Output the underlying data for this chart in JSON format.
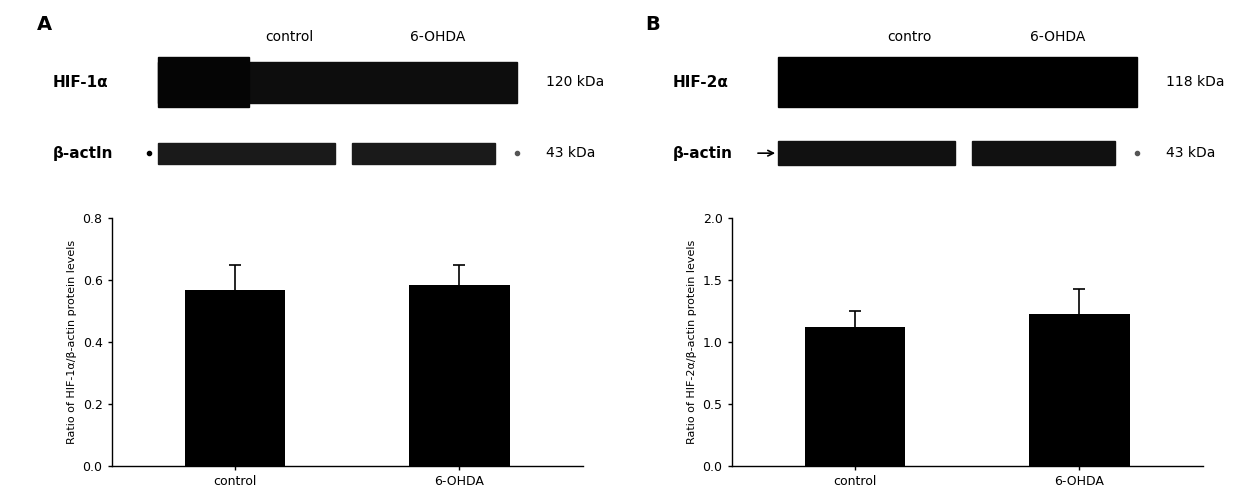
{
  "panel_A": {
    "label": "A",
    "wb_label1": "HIF-1α",
    "wb_label2": "β-actIn",
    "kda1": "120 kDa",
    "kda2": "43 kDa",
    "wb_col_labels": [
      "control",
      "6-OHDA"
    ],
    "categories": [
      "control",
      "6-OHDA"
    ],
    "values": [
      0.57,
      0.585
    ],
    "errors": [
      0.08,
      0.065
    ],
    "ylabel": "Ratio of HIF-1α/β-actin protein levels",
    "ylim": [
      0.0,
      0.8
    ],
    "yticks": [
      0.0,
      0.2,
      0.4,
      0.6,
      0.8
    ]
  },
  "panel_B": {
    "label": "B",
    "wb_label1": "HIF-2α",
    "wb_label2": "β-actin",
    "kda1": "118 kDa",
    "kda2": "43 kDa",
    "wb_col_labels": [
      "contro",
      "6-OHDA"
    ],
    "categories": [
      "control",
      "6-OHDA"
    ],
    "values": [
      1.12,
      1.23
    ],
    "errors": [
      0.13,
      0.2
    ],
    "ylabel": "Ratio of HIF-2α/β-actin protein levels",
    "ylim": [
      0.0,
      2.0
    ],
    "yticks": [
      0.0,
      0.5,
      1.0,
      1.5,
      2.0
    ]
  },
  "bar_color": "#000000",
  "bar_width": 0.45,
  "bg_color": "#ffffff",
  "spine_color": "#000000",
  "tick_color": "#000000",
  "label_fontsize": 9,
  "tick_fontsize": 9,
  "ylabel_fontsize": 8.0,
  "panel_label_fontsize": 14,
  "cap_size": 4,
  "wb_fontsize": 10
}
